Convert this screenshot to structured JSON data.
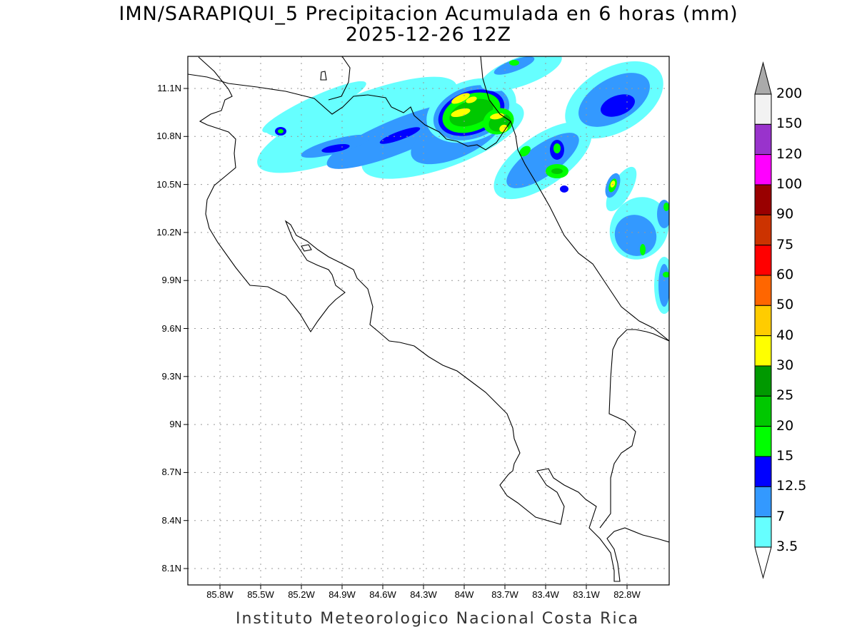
{
  "title": {
    "line1": "IMN/SARAPIQUI_5 Precipitacion Acumulada en 6 horas (mm)",
    "line2": "2025-12-26 12Z"
  },
  "footer": "Instituto Meteorologico Nacional Costa Rica",
  "map": {
    "lat_labels": [
      "11.1N",
      "10.8N",
      "10.5N",
      "10.2N",
      "9.9N",
      "9.6N",
      "9.3N",
      "9N",
      "8.7N",
      "8.4N",
      "8.1N"
    ],
    "lon_labels": [
      "85.8W",
      "85.5W",
      "85.2W",
      "84.9W",
      "84.6W",
      "84.3W",
      "84W",
      "83.7W",
      "83.4W",
      "83.1W",
      "82.8W"
    ]
  },
  "colorbar": {
    "labels": [
      "200",
      "150",
      "120",
      "100",
      "90",
      "75",
      "60",
      "50",
      "40",
      "30",
      "25",
      "20",
      "15",
      "12.5",
      "7",
      "3.5"
    ],
    "colors": [
      "#f2f2f2",
      "#9933cc",
      "#ff00ff",
      "#990000",
      "#cc3300",
      "#ff0000",
      "#ff6600",
      "#ffcc00",
      "#ffff00",
      "#009900",
      "#00c800",
      "#00ff00",
      "#0000ff",
      "#3399ff",
      "#66ffff"
    ],
    "over_color": "#aaaaaa",
    "under_color": "#ffffff"
  }
}
